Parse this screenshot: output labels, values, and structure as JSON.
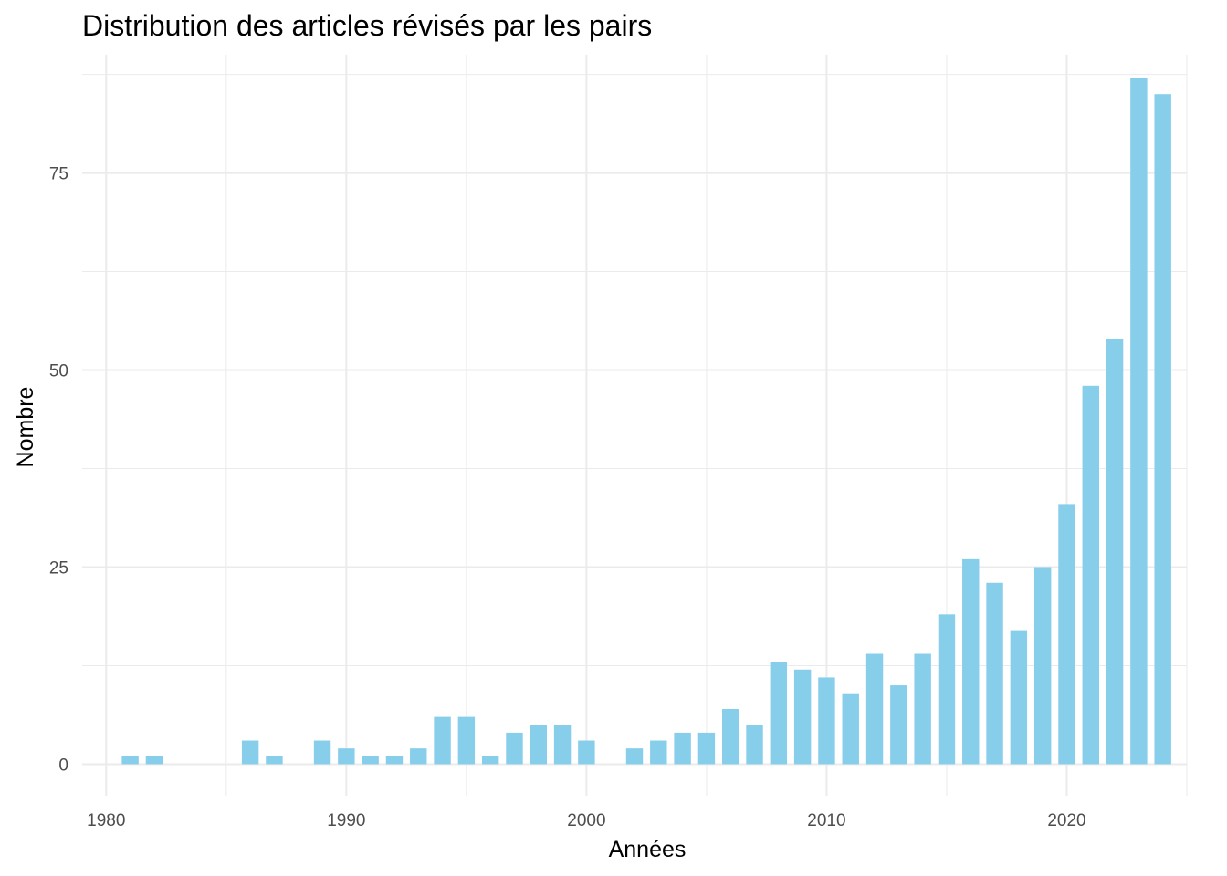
{
  "chart_data": {
    "type": "bar",
    "title": "Distribution des articles révisés par les pairs",
    "xlabel": "Années",
    "ylabel": "Nombre",
    "bar_color": "#87CEEB",
    "grid_color": "#ebebeb",
    "grid": true,
    "legend": "none",
    "xlim": [
      1979,
      2025
    ],
    "ylim": [
      -4,
      90
    ],
    "x_ticks": [
      1980,
      1990,
      2000,
      2010,
      2020
    ],
    "y_ticks": [
      0,
      25,
      50,
      75
    ],
    "x": [
      1981,
      1982,
      1986,
      1987,
      1989,
      1990,
      1991,
      1992,
      1993,
      1994,
      1995,
      1996,
      1997,
      1998,
      1999,
      2000,
      2002,
      2003,
      2004,
      2005,
      2006,
      2007,
      2008,
      2009,
      2010,
      2011,
      2012,
      2013,
      2014,
      2015,
      2016,
      2017,
      2018,
      2019,
      2020,
      2021,
      2022,
      2023,
      2024
    ],
    "values": [
      1,
      1,
      3,
      1,
      3,
      2,
      1,
      1,
      2,
      6,
      6,
      1,
      4,
      5,
      5,
      3,
      2,
      3,
      4,
      4,
      7,
      5,
      13,
      12,
      11,
      9,
      14,
      10,
      14,
      19,
      26,
      23,
      17,
      25,
      33,
      48,
      54,
      87,
      85
    ]
  }
}
